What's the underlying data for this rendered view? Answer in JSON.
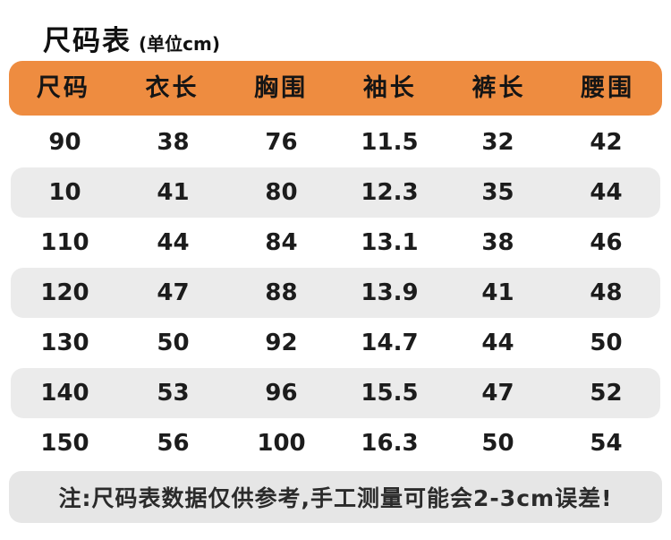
{
  "title": {
    "main": "尺码表",
    "unit": "(单位cm)"
  },
  "chart_data": {
    "type": "table",
    "title": "尺码表(单位cm)",
    "columns": [
      "尺码",
      "衣长",
      "胸围",
      "袖长",
      "裤长",
      "腰围"
    ],
    "rows": [
      [
        90,
        38,
        76,
        11.5,
        32,
        42
      ],
      [
        10,
        41,
        80,
        12.3,
        35,
        44
      ],
      [
        110,
        44,
        84,
        13.1,
        38,
        46
      ],
      [
        120,
        47,
        88,
        13.9,
        41,
        48
      ],
      [
        130,
        50,
        92,
        14.7,
        44,
        50
      ],
      [
        140,
        53,
        96,
        15.5,
        47,
        52
      ],
      [
        150,
        56,
        100,
        16.3,
        50,
        54
      ]
    ],
    "unit": "cm"
  },
  "footer": {
    "note": "注:尺码表数据仅供参考,手工测量可能会2-3cm误差!"
  },
  "colors": {
    "header_bg": "#ee8c40",
    "row_alt_bg": "#ebebeb",
    "note_bg": "#e6e6e6",
    "text": "#1c1c1c"
  }
}
